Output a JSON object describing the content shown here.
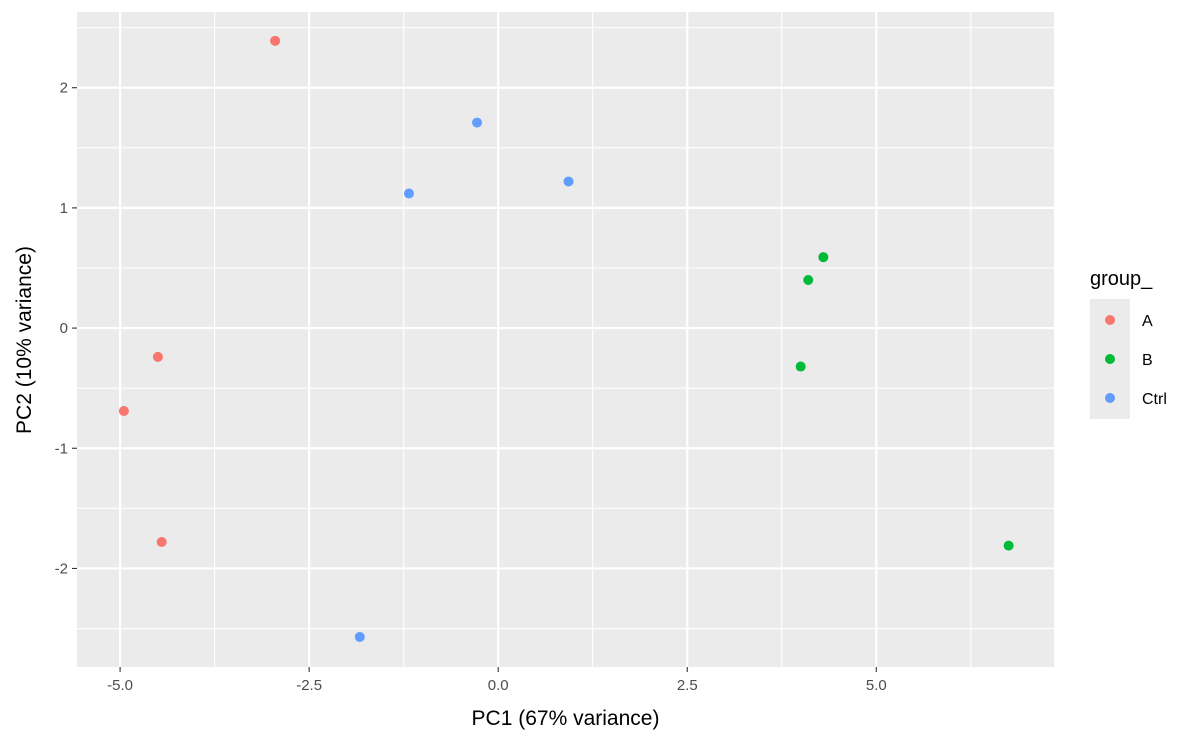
{
  "chart_data": {
    "type": "scatter",
    "xlabel": "PC1 (67% variance)",
    "ylabel": "PC2 (10% variance)",
    "xlim": [
      -5.57,
      7.35
    ],
    "ylim": [
      -2.82,
      2.63
    ],
    "x_ticks": [
      -5.0,
      -2.5,
      0.0,
      2.5,
      5.0
    ],
    "x_tick_labels": [
      "-5.0",
      "-2.5",
      "0.0",
      "2.5",
      "5.0"
    ],
    "y_ticks": [
      -2,
      -1,
      0,
      1,
      2
    ],
    "y_tick_labels": [
      "-2",
      "-1",
      "0",
      "1",
      "2"
    ],
    "grid": true,
    "panel_background": "#ebebeb",
    "legend_position": "right",
    "legend_title": "group_",
    "series": [
      {
        "name": "A",
        "color": "#f8766d",
        "points": [
          {
            "x": -2.95,
            "y": 2.39
          },
          {
            "x": -4.5,
            "y": -0.24
          },
          {
            "x": -4.95,
            "y": -0.69
          },
          {
            "x": -4.45,
            "y": -1.78
          }
        ]
      },
      {
        "name": "B",
        "color": "#00ba38",
        "points": [
          {
            "x": 4.3,
            "y": 0.59
          },
          {
            "x": 4.1,
            "y": 0.4
          },
          {
            "x": 4.0,
            "y": -0.32
          },
          {
            "x": 6.75,
            "y": -1.81
          }
        ]
      },
      {
        "name": "Ctrl",
        "color": "#619cff",
        "points": [
          {
            "x": -0.28,
            "y": 1.71
          },
          {
            "x": -1.18,
            "y": 1.12
          },
          {
            "x": 0.93,
            "y": 1.22
          },
          {
            "x": -1.83,
            "y": -2.57
          }
        ]
      }
    ]
  }
}
